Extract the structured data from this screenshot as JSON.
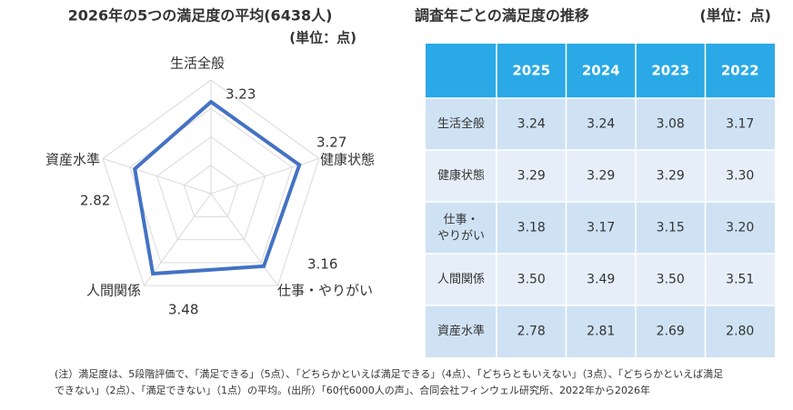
{
  "chart_data": {
    "type": "radar",
    "title": "2026年の5つの満足度の平均(6438人)",
    "subtitle": "(単位：点)",
    "categories": [
      "生活全般",
      "健康状態",
      "仕事・やりがい",
      "人間関係",
      "資産水準"
    ],
    "values": [
      3.23,
      3.27,
      3.16,
      3.48,
      2.82
    ],
    "color": "#4472c4",
    "rlim": [
      0,
      4
    ],
    "rticks": [
      1,
      2,
      3,
      4
    ],
    "grid": true
  },
  "table": {
    "title": "調査年ごとの満足度の推移",
    "unit": "(単位：点)",
    "columns": [
      "2025",
      "2024",
      "2023",
      "2022"
    ],
    "rows": [
      {
        "label": "生活全般",
        "cells": [
          "3.24",
          "3.24",
          "3.08",
          "3.17"
        ]
      },
      {
        "label": "健康状態",
        "cells": [
          "3.29",
          "3.29",
          "3.29",
          "3.30"
        ]
      },
      {
        "label": "仕事・やりがい",
        "cells": [
          "3.18",
          "3.17",
          "3.15",
          "3.20"
        ]
      },
      {
        "label": "人間関係",
        "cells": [
          "3.50",
          "3.49",
          "3.50",
          "3.51"
        ]
      },
      {
        "label": "資産水準",
        "cells": [
          "2.78",
          "2.81",
          "2.69",
          "2.80"
        ]
      }
    ]
  },
  "note": [
    "(注）満足度は、5段階評価で、「満足できる」（5点）、「どちらかといえば満足できる」（4点）、「どちらともいえない」（3点）、「どちらかといえば満足",
    "できない」（2点）、「満足できない」（1点）の平均。(出所）「60代6000人の声」、合同会社フィンウェル研究所、2022年から2026年"
  ]
}
